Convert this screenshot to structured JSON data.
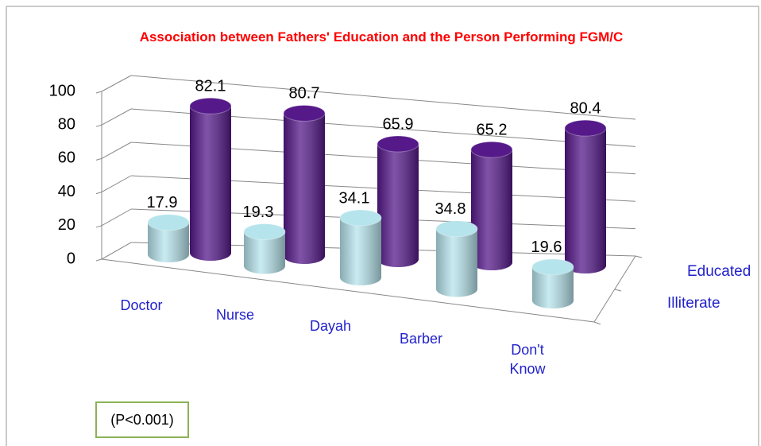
{
  "chart_data": {
    "type": "bar3d",
    "title": "Association between Fathers' Education and the Person Performing FGM/C",
    "categories": [
      "Doctor",
      "Nurse",
      "Dayah",
      "Barber",
      "Don't Know"
    ],
    "series": [
      {
        "name": "Illiterate",
        "color": "#b6e4ec",
        "values": [
          17.9,
          19.3,
          34.1,
          34.8,
          19.6
        ]
      },
      {
        "name": "Educated",
        "color": "#55198a",
        "values": [
          82.1,
          80.7,
          65.9,
          65.2,
          80.4
        ]
      }
    ],
    "ylim": [
      0,
      100
    ],
    "yticks": [
      0,
      20,
      40,
      60,
      80,
      100
    ],
    "grid": true,
    "annotation": "(P<0.001)"
  }
}
